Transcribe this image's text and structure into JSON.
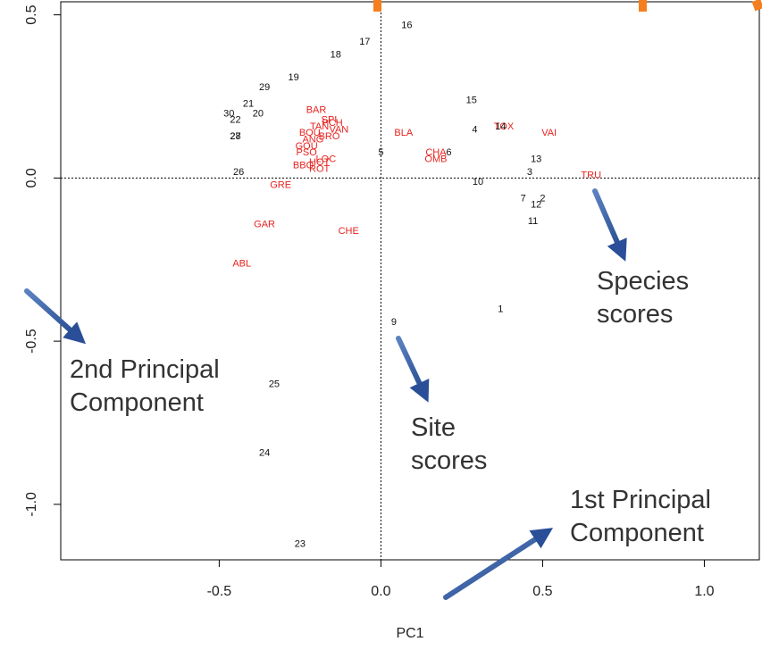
{
  "chart_data": {
    "type": "scatter",
    "title": "",
    "xlabel": "PC1",
    "ylabel": "",
    "xlim": [
      -0.99,
      1.17
    ],
    "ylim": [
      -1.17,
      0.54
    ],
    "x_ticks": [
      -0.5,
      0.0,
      0.5,
      1.0
    ],
    "x_tick_labels": [
      "-0.5",
      "0.0",
      "0.5",
      "1.0"
    ],
    "y_ticks": [
      -1.0,
      -0.5,
      0.0,
      0.5
    ],
    "y_tick_labels": [
      "-1.0",
      "-0.5",
      "0.0",
      "0.5"
    ],
    "reference_lines": {
      "x": 0,
      "y": 0,
      "style": "dotted"
    },
    "grid": false,
    "colors": {
      "site": "#111111",
      "species": "#e8231f",
      "arrow": "#2d5aa0",
      "marker": "#f57f1e"
    },
    "site_scores": [
      {
        "label": "1",
        "x": 0.37,
        "y": -0.4
      },
      {
        "label": "2",
        "x": 0.5,
        "y": -0.06
      },
      {
        "label": "3",
        "x": 0.46,
        "y": 0.02
      },
      {
        "label": "4",
        "x": 0.29,
        "y": 0.15
      },
      {
        "label": "5",
        "x": 0.0,
        "y": 0.08
      },
      {
        "label": "6",
        "x": 0.21,
        "y": 0.08
      },
      {
        "label": "7",
        "x": 0.44,
        "y": -0.06
      },
      {
        "label": "9",
        "x": 0.04,
        "y": -0.44
      },
      {
        "label": "10",
        "x": 0.3,
        "y": -0.01
      },
      {
        "label": "11",
        "x": 0.47,
        "y": -0.13
      },
      {
        "label": "12",
        "x": 0.48,
        "y": -0.08
      },
      {
        "label": "13",
        "x": 0.48,
        "y": 0.06
      },
      {
        "label": "14",
        "x": 0.37,
        "y": 0.16
      },
      {
        "label": "15",
        "x": 0.28,
        "y": 0.24
      },
      {
        "label": "16",
        "x": 0.08,
        "y": 0.47
      },
      {
        "label": "17",
        "x": -0.05,
        "y": 0.42
      },
      {
        "label": "18",
        "x": -0.14,
        "y": 0.38
      },
      {
        "label": "19",
        "x": -0.27,
        "y": 0.31
      },
      {
        "label": "20",
        "x": -0.38,
        "y": 0.2
      },
      {
        "label": "21",
        "x": -0.41,
        "y": 0.23
      },
      {
        "label": "22",
        "x": -0.45,
        "y": 0.18
      },
      {
        "label": "23",
        "x": -0.25,
        "y": -1.12
      },
      {
        "label": "24",
        "x": -0.36,
        "y": -0.84
      },
      {
        "label": "25",
        "x": -0.33,
        "y": -0.63
      },
      {
        "label": "26",
        "x": -0.44,
        "y": 0.02
      },
      {
        "label": "27",
        "x": -0.45,
        "y": 0.13
      },
      {
        "label": "28",
        "x": -0.45,
        "y": 0.13
      },
      {
        "label": "29",
        "x": -0.36,
        "y": 0.28
      },
      {
        "label": "30",
        "x": -0.47,
        "y": 0.2
      }
    ],
    "species_scores": [
      {
        "label": "ABL",
        "x": -0.43,
        "y": -0.26
      },
      {
        "label": "GAR",
        "x": -0.36,
        "y": -0.14
      },
      {
        "label": "CHE",
        "x": -0.1,
        "y": -0.16
      },
      {
        "label": "GRE",
        "x": -0.31,
        "y": -0.02
      },
      {
        "label": "BAR",
        "x": -0.2,
        "y": 0.21
      },
      {
        "label": "SPI",
        "x": -0.16,
        "y": 0.18
      },
      {
        "label": "TAN",
        "x": -0.19,
        "y": 0.16
      },
      {
        "label": "PCH",
        "x": -0.15,
        "y": 0.17
      },
      {
        "label": "VAN",
        "x": -0.13,
        "y": 0.15
      },
      {
        "label": "BOU",
        "x": -0.22,
        "y": 0.14
      },
      {
        "label": "BRO",
        "x": -0.16,
        "y": 0.13
      },
      {
        "label": "ANG",
        "x": -0.21,
        "y": 0.12
      },
      {
        "label": "GOU",
        "x": -0.23,
        "y": 0.1
      },
      {
        "label": "PSO",
        "x": -0.23,
        "y": 0.08
      },
      {
        "label": "ROT",
        "x": -0.19,
        "y": 0.03
      },
      {
        "label": "BBO",
        "x": -0.24,
        "y": 0.04
      },
      {
        "label": "HOT",
        "x": -0.19,
        "y": 0.05
      },
      {
        "label": "LOC",
        "x": -0.17,
        "y": 0.06
      },
      {
        "label": "BLA",
        "x": 0.07,
        "y": 0.14
      },
      {
        "label": "CHA",
        "x": 0.17,
        "y": 0.08
      },
      {
        "label": "OMB",
        "x": 0.17,
        "y": 0.06
      },
      {
        "label": "TOX",
        "x": 0.38,
        "y": 0.16
      },
      {
        "label": "VAI",
        "x": 0.52,
        "y": 0.14
      },
      {
        "label": "TRU",
        "x": 0.65,
        "y": 0.01
      }
    ],
    "annotations": [
      {
        "id": "species",
        "line1": "Species",
        "line2": "scores"
      },
      {
        "id": "site",
        "line1": "Site",
        "line2": "scores"
      },
      {
        "id": "pc2",
        "line1": "2nd Principal",
        "line2": "Component"
      },
      {
        "id": "pc1",
        "line1": "1st Principal",
        "line2": "Component"
      }
    ]
  }
}
